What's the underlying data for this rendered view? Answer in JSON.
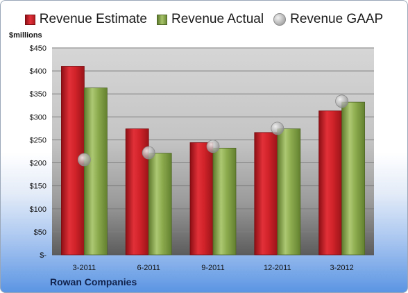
{
  "legend": {
    "estimate": "Revenue Estimate",
    "actual": "Revenue Actual",
    "gaap": "Revenue GAAP"
  },
  "unit_label": "$millions",
  "company": "Rowan Companies",
  "colors": {
    "estimate": "#d2232a",
    "actual": "#8cab4e",
    "gaap": "#c8c8c8"
  },
  "chart_data": {
    "type": "bar",
    "categories": [
      "3-2011",
      "6-2011",
      "9-2011",
      "12-2011",
      "3-2012"
    ],
    "series": [
      {
        "name": "Revenue Estimate",
        "type": "bar",
        "values": [
          410,
          274,
          244,
          266,
          313
        ]
      },
      {
        "name": "Revenue Actual",
        "type": "bar",
        "values": [
          363,
          221,
          232,
          274,
          332
        ]
      },
      {
        "name": "Revenue GAAP",
        "type": "scatter",
        "values": [
          207,
          222,
          236,
          275,
          334
        ]
      }
    ],
    "ylabel": "$millions",
    "ylim": [
      0,
      450
    ],
    "y_ticks": [
      0,
      50,
      100,
      150,
      200,
      250,
      300,
      350,
      400,
      450
    ],
    "y_tick_labels": [
      "$-",
      "$50",
      "$100",
      "$150",
      "$200",
      "$250",
      "$300",
      "$350",
      "$400",
      "$450"
    ],
    "grid": true,
    "legend_position": "top"
  }
}
